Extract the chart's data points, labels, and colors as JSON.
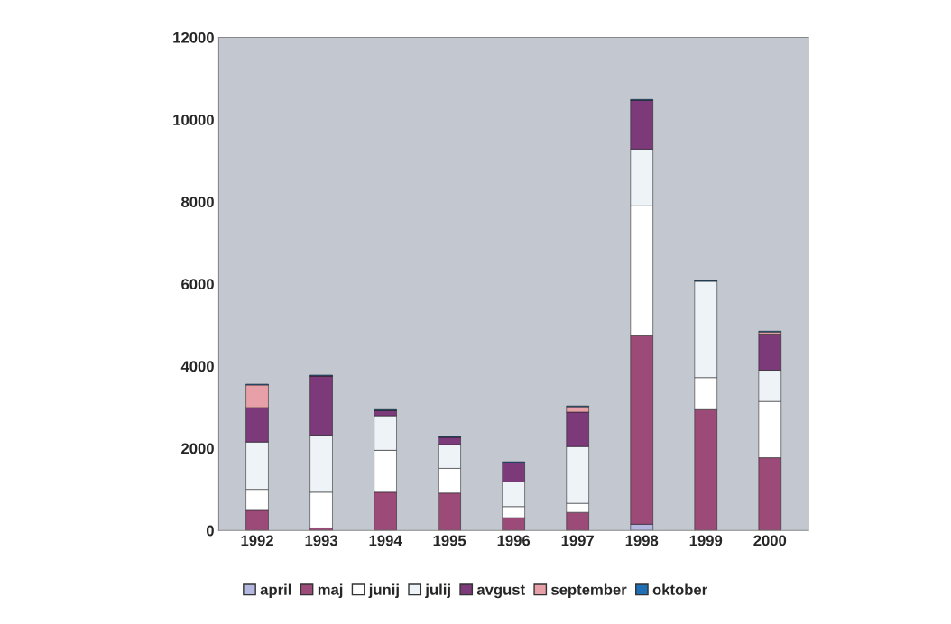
{
  "chart_data": {
    "type": "bar",
    "stacked": true,
    "categories": [
      "1992",
      "1993",
      "1994",
      "1995",
      "1996",
      "1997",
      "1998",
      "1999",
      "2000"
    ],
    "series": [
      {
        "name": "april",
        "color": "#b4b8e0",
        "values": [
          0,
          0,
          0,
          0,
          0,
          0,
          150,
          0,
          0
        ]
      },
      {
        "name": "maj",
        "color": "#9c4a78",
        "values": [
          490,
          60,
          930,
          910,
          310,
          440,
          4590,
          2940,
          1770
        ]
      },
      {
        "name": "junij",
        "color": "#ffffff",
        "values": [
          510,
          870,
          1020,
          600,
          270,
          220,
          3160,
          780,
          1370
        ]
      },
      {
        "name": "julij",
        "color": "#eef3f8",
        "values": [
          1150,
          1390,
          840,
          580,
          600,
          1380,
          1380,
          2350,
          760
        ]
      },
      {
        "name": "avgust",
        "color": "#7d3a7a",
        "values": [
          840,
          1440,
          130,
          180,
          470,
          840,
          1190,
          0,
          880
        ]
      },
      {
        "name": "september",
        "color": "#e8a0a8",
        "values": [
          550,
          0,
          0,
          0,
          0,
          130,
          0,
          0,
          50
        ]
      },
      {
        "name": "oktober",
        "color": "#1f6fb4",
        "values": [
          20,
          20,
          20,
          20,
          20,
          20,
          20,
          20,
          20
        ]
      }
    ],
    "ylim": [
      0,
      12000
    ],
    "yticks": [
      0,
      2000,
      4000,
      6000,
      8000,
      10000,
      12000
    ],
    "grid": false,
    "legend": "bottom"
  }
}
